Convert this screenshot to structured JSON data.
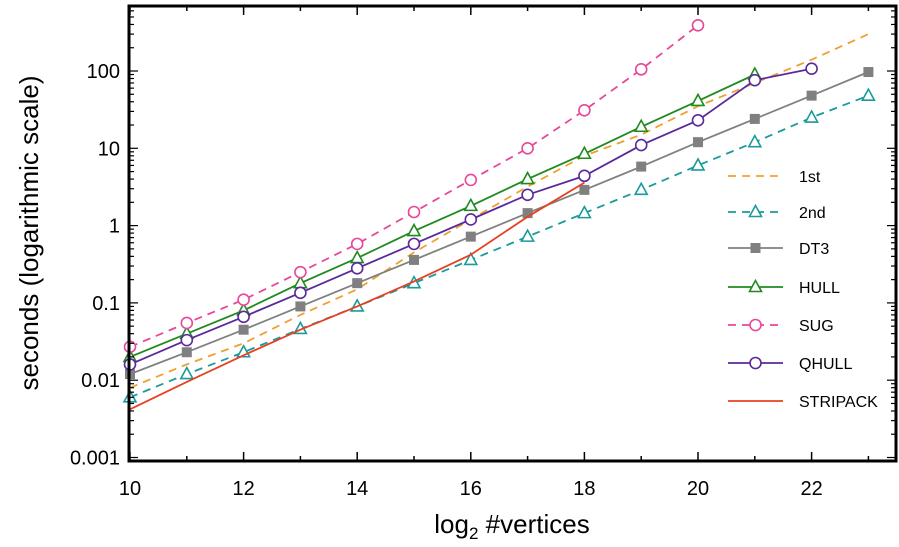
{
  "chart_data": {
    "type": "line",
    "xlabel": "log",
    "xlabel_sub": "2",
    "xlabel_rest": " #vertices",
    "ylabel": "seconds (logarithmic scale)",
    "y_scale": "log",
    "xlim": [
      10,
      23.6
    ],
    "ylim": [
      0.001,
      1000
    ],
    "x_ticks": [
      10,
      12,
      14,
      16,
      18,
      20,
      22
    ],
    "x_tick_labels": [
      "10",
      "12",
      "14",
      "16",
      "18",
      "20",
      "22"
    ],
    "y_ticks": [
      0.001,
      0.01,
      0.1,
      1,
      10,
      100
    ],
    "y_tick_labels": [
      "0.001",
      "0.01",
      "0.1",
      "1",
      "10",
      "100"
    ],
    "grid": false,
    "legend_position": "right",
    "series": [
      {
        "name": "1st",
        "color": "#f0a030",
        "dash": "8,6",
        "marker": "none",
        "x": [
          10,
          11,
          12,
          13,
          14,
          15,
          16,
          17,
          18,
          19,
          20,
          21,
          22,
          23
        ],
        "y": [
          0.008,
          0.016,
          0.03,
          0.07,
          0.15,
          0.45,
          1.2,
          3.2,
          8,
          15,
          35,
          70,
          140,
          300
        ]
      },
      {
        "name": "2nd",
        "color": "#1a9a9a",
        "dash": "8,6",
        "marker": "triangle-open",
        "x": [
          10,
          11,
          12,
          13,
          14,
          15,
          16,
          17,
          18,
          19,
          20,
          21,
          22,
          23
        ],
        "y": [
          0.006,
          0.012,
          0.023,
          0.046,
          0.09,
          0.18,
          0.36,
          0.72,
          1.45,
          2.9,
          6,
          12,
          25,
          48
        ]
      },
      {
        "name": "DT3",
        "color": "#808080",
        "dash": "",
        "marker": "square-filled",
        "x": [
          10,
          11,
          12,
          13,
          14,
          15,
          16,
          17,
          18,
          19,
          20,
          21,
          22,
          23
        ],
        "y": [
          0.012,
          0.023,
          0.045,
          0.09,
          0.18,
          0.36,
          0.72,
          1.45,
          2.9,
          5.8,
          12,
          24,
          48,
          97
        ]
      },
      {
        "name": "HULL",
        "color": "#1f8a1f",
        "dash": "",
        "marker": "triangle-open",
        "x": [
          10,
          11,
          12,
          13,
          14,
          15,
          16,
          17,
          18,
          19,
          20,
          21
        ],
        "y": [
          0.02,
          0.04,
          0.08,
          0.18,
          0.38,
          0.85,
          1.8,
          4,
          8.5,
          19,
          41,
          90
        ]
      },
      {
        "name": "SUG",
        "color": "#e8489a",
        "dash": "8,6",
        "marker": "circle-open",
        "x": [
          10,
          11,
          12,
          13,
          14,
          15,
          16,
          17,
          18,
          19,
          20
        ],
        "y": [
          0.027,
          0.055,
          0.11,
          0.25,
          0.58,
          1.5,
          3.9,
          10,
          31,
          105,
          390
        ]
      },
      {
        "name": "QHULL",
        "color": "#5a2a9a",
        "dash": "",
        "marker": "circle-open",
        "x": [
          10,
          11,
          12,
          13,
          14,
          15,
          16,
          17,
          18,
          19,
          20,
          21,
          22
        ],
        "y": [
          0.016,
          0.033,
          0.066,
          0.135,
          0.28,
          0.58,
          1.2,
          2.5,
          4.4,
          11,
          23,
          76,
          107
        ]
      },
      {
        "name": "STRIPACK",
        "color": "#e84020",
        "dash": "",
        "marker": "none",
        "x": [
          10,
          11,
          12,
          13,
          14,
          15,
          16,
          17,
          18
        ],
        "y": [
          0.0042,
          0.0095,
          0.021,
          0.045,
          0.09,
          0.19,
          0.42,
          1.3,
          3.6
        ]
      }
    ]
  }
}
